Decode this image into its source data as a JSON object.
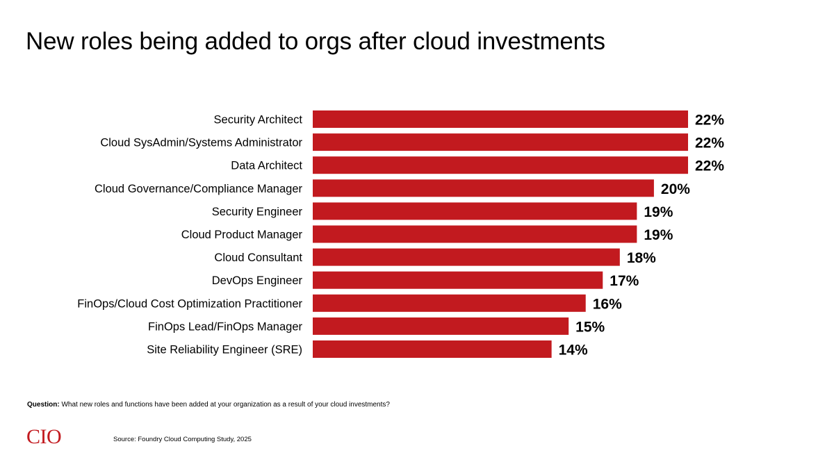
{
  "title": "New roles being added to orgs after cloud investments",
  "question": {
    "label": "Question:",
    "text": "What new roles and functions have been added at your organization as a result of your cloud investments?"
  },
  "source": "Source: Foundry Cloud Computing Study, 2025",
  "logo": {
    "text": "CIO",
    "color": "#c21a1f"
  },
  "colors": {
    "bar": "#c21a1f",
    "text": "#000000"
  },
  "chart_data": {
    "type": "bar",
    "orientation": "horizontal",
    "title": "New roles being added to orgs after cloud investments",
    "categories": [
      "Security Architect",
      "Cloud SysAdmin/Systems Administrator",
      "Data Architect",
      "Cloud Governance/Compliance Manager",
      "Security Engineer",
      "Cloud Product Manager",
      "Cloud Consultant",
      "DevOps Engineer",
      "FinOps/Cloud Cost Optimization Practitioner",
      "FinOps Lead/FinOps Manager",
      "Site Reliability Engineer (SRE)"
    ],
    "values": [
      22,
      22,
      22,
      20,
      19,
      19,
      18,
      17,
      16,
      15,
      14
    ],
    "data_labels": [
      "22%",
      "22%",
      "22%",
      "20%",
      "19%",
      "19%",
      "18%",
      "17%",
      "16%",
      "15%",
      "14%"
    ],
    "unit": "%",
    "xlabel": "",
    "ylabel": "",
    "grid": false,
    "legend": "none"
  }
}
